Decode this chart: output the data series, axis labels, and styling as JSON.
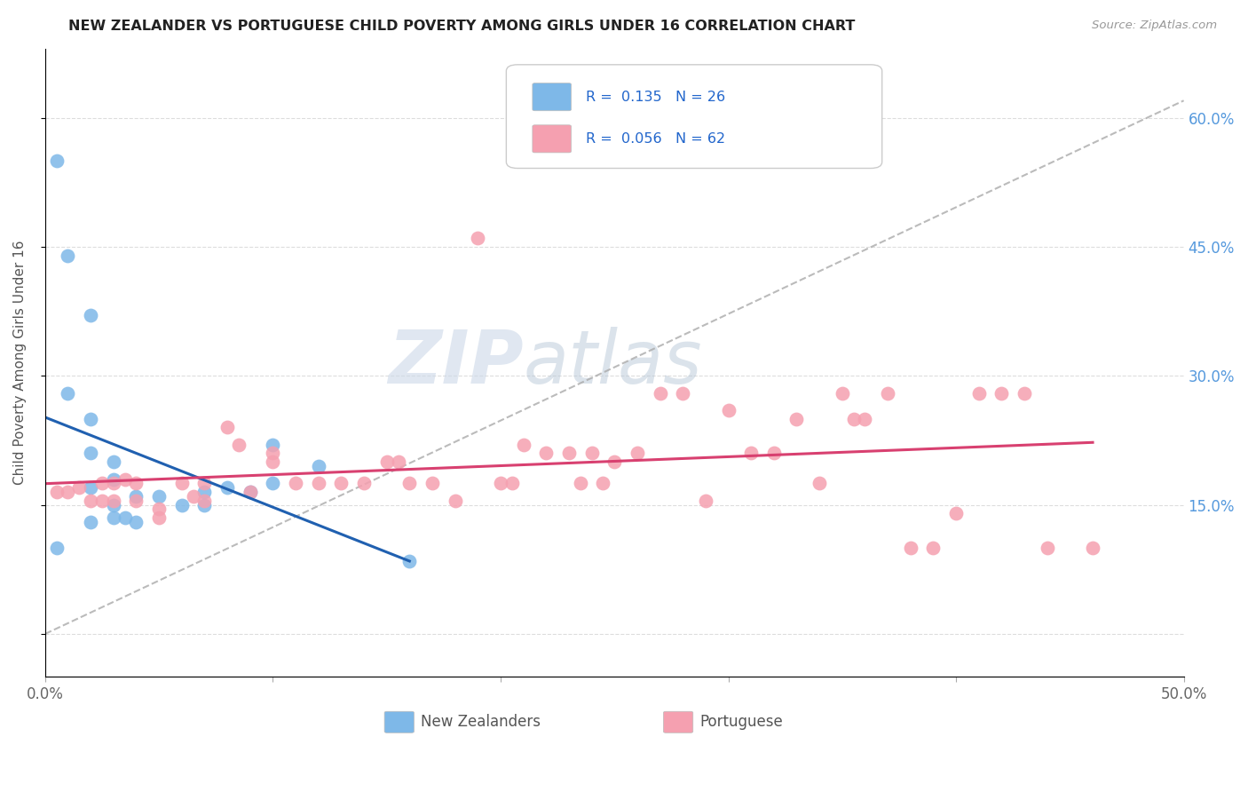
{
  "title": "NEW ZEALANDER VS PORTUGUESE CHILD POVERTY AMONG GIRLS UNDER 16 CORRELATION CHART",
  "source": "Source: ZipAtlas.com",
  "ylabel": "Child Poverty Among Girls Under 16",
  "xlim": [
    0.0,
    0.5
  ],
  "ylim": [
    -0.05,
    0.68
  ],
  "xtick_positions": [
    0.0,
    0.1,
    0.2,
    0.3,
    0.4,
    0.5
  ],
  "xtick_labels": [
    "0.0%",
    "",
    "",
    "",
    "",
    "50.0%"
  ],
  "ytick_positions": [
    0.0,
    0.15,
    0.3,
    0.45,
    0.6
  ],
  "ytick_labels_right": [
    "",
    "15.0%",
    "30.0%",
    "45.0%",
    "60.0%"
  ],
  "nz_r": 0.135,
  "nz_n": 26,
  "pt_r": 0.056,
  "pt_n": 62,
  "nz_color": "#7eb8e8",
  "pt_color": "#f5a0b0",
  "nz_line_color": "#2060b0",
  "pt_line_color": "#d84070",
  "background_color": "#ffffff",
  "nz_x": [
    0.005,
    0.005,
    0.01,
    0.01,
    0.02,
    0.02,
    0.02,
    0.02,
    0.02,
    0.03,
    0.03,
    0.03,
    0.03,
    0.035,
    0.04,
    0.04,
    0.05,
    0.06,
    0.07,
    0.07,
    0.08,
    0.09,
    0.1,
    0.1,
    0.12,
    0.16
  ],
  "nz_y": [
    0.55,
    0.1,
    0.44,
    0.28,
    0.37,
    0.25,
    0.21,
    0.17,
    0.13,
    0.2,
    0.18,
    0.15,
    0.135,
    0.135,
    0.16,
    0.13,
    0.16,
    0.15,
    0.165,
    0.15,
    0.17,
    0.165,
    0.22,
    0.175,
    0.195,
    0.085
  ],
  "pt_x": [
    0.005,
    0.01,
    0.015,
    0.02,
    0.025,
    0.025,
    0.03,
    0.03,
    0.035,
    0.04,
    0.04,
    0.05,
    0.05,
    0.06,
    0.065,
    0.07,
    0.07,
    0.08,
    0.085,
    0.09,
    0.1,
    0.1,
    0.11,
    0.12,
    0.13,
    0.14,
    0.15,
    0.155,
    0.16,
    0.17,
    0.18,
    0.19,
    0.2,
    0.205,
    0.21,
    0.22,
    0.23,
    0.235,
    0.24,
    0.245,
    0.25,
    0.26,
    0.27,
    0.28,
    0.29,
    0.3,
    0.31,
    0.32,
    0.33,
    0.34,
    0.35,
    0.355,
    0.36,
    0.37,
    0.38,
    0.39,
    0.4,
    0.41,
    0.42,
    0.43,
    0.44,
    0.46
  ],
  "pt_y": [
    0.165,
    0.165,
    0.17,
    0.155,
    0.175,
    0.155,
    0.175,
    0.155,
    0.18,
    0.155,
    0.175,
    0.135,
    0.145,
    0.175,
    0.16,
    0.175,
    0.155,
    0.24,
    0.22,
    0.165,
    0.21,
    0.2,
    0.175,
    0.175,
    0.175,
    0.175,
    0.2,
    0.2,
    0.175,
    0.175,
    0.155,
    0.46,
    0.175,
    0.175,
    0.22,
    0.21,
    0.21,
    0.175,
    0.21,
    0.175,
    0.2,
    0.21,
    0.28,
    0.28,
    0.155,
    0.26,
    0.21,
    0.21,
    0.25,
    0.175,
    0.28,
    0.25,
    0.25,
    0.28,
    0.1,
    0.1,
    0.14,
    0.28,
    0.28,
    0.28,
    0.1,
    0.1
  ]
}
